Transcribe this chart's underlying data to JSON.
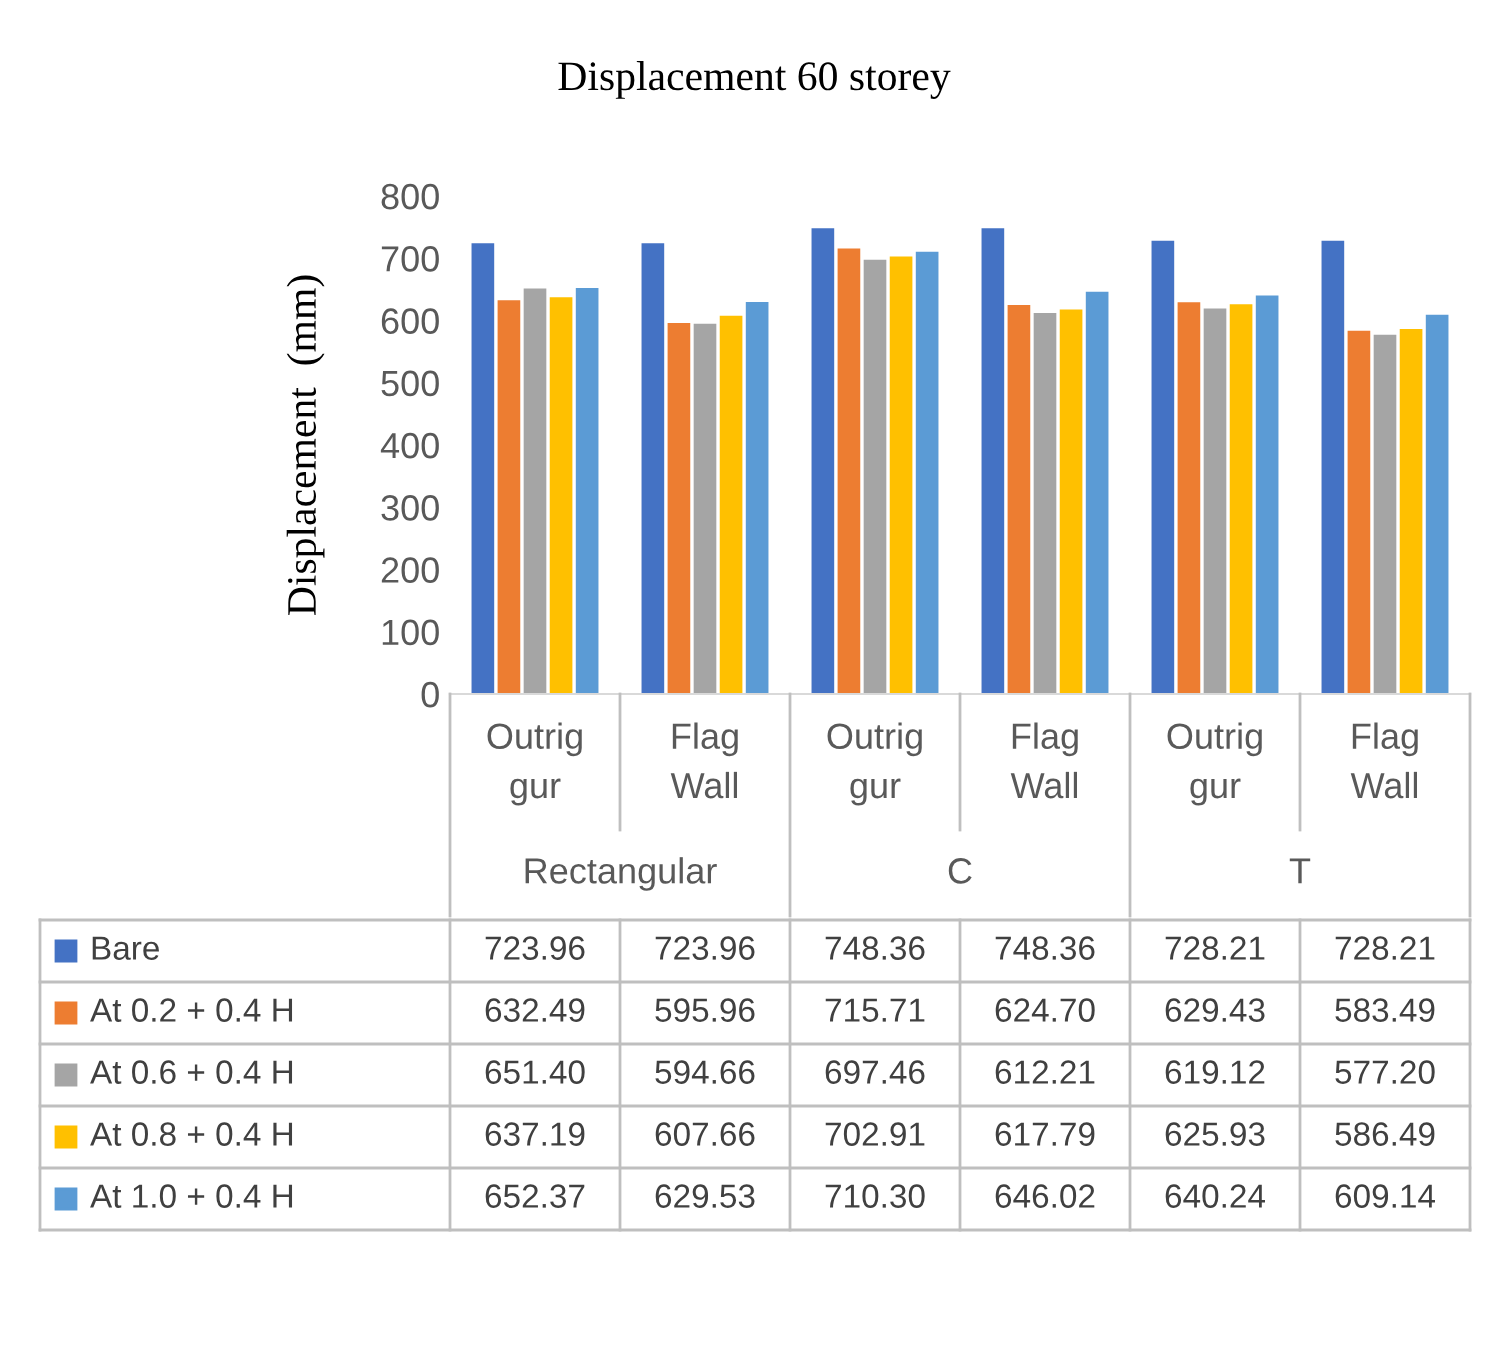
{
  "chart_data": {
    "type": "bar",
    "title": "Displacement 60 storey",
    "ylabel": "Displacement  (mm)",
    "categories": [
      "Outrig gur",
      "Flag Wall",
      "Outrig gur",
      "Flag Wall",
      "Outrig gur",
      "Flag Wall"
    ],
    "annotations": [
      "Rectangular",
      "C",
      "T"
    ],
    "series": [
      {
        "name": "Bare",
        "color": "#4472c4",
        "values": [
          723.96,
          723.96,
          748.36,
          748.36,
          728.21,
          728.21
        ],
        "value_labels": [
          "723.96",
          "723.96",
          "748.36",
          "748.36",
          "728.21",
          "728.21"
        ]
      },
      {
        "name": "At 0.2 + 0.4 H",
        "color": "#ed7d31",
        "values": [
          632.49,
          595.96,
          715.71,
          624.7,
          629.43,
          583.49
        ],
        "value_labels": [
          "632.49",
          "595.96",
          "715.71",
          "624.70",
          "629.43",
          "583.49"
        ]
      },
      {
        "name": "At 0.6 + 0.4 H",
        "color": "#a5a5a5",
        "values": [
          651.4,
          594.66,
          697.46,
          612.21,
          619.12,
          577.2
        ],
        "value_labels": [
          "651.40",
          "594.66",
          "697.46",
          "612.21",
          "619.12",
          "577.20"
        ]
      },
      {
        "name": "At 0.8 + 0.4 H",
        "color": "#ffc000",
        "values": [
          637.19,
          607.66,
          702.91,
          617.79,
          625.93,
          586.49
        ],
        "value_labels": [
          "637.19",
          "607.66",
          "702.91",
          "617.79",
          "625.93",
          "586.49"
        ]
      },
      {
        "name": "At 1.0 + 0.4 H",
        "color": "#5b9bd5",
        "values": [
          652.37,
          629.53,
          710.3,
          646.02,
          640.24,
          609.14
        ],
        "value_labels": [
          "652.37",
          "629.53",
          "710.30",
          "646.02",
          "640.24",
          "609.14"
        ]
      }
    ],
    "ylim": [
      0,
      800
    ],
    "yticks": [
      0,
      100,
      200,
      300,
      400,
      500,
      600,
      700,
      800
    ],
    "grid": false,
    "legend": "bottom"
  }
}
